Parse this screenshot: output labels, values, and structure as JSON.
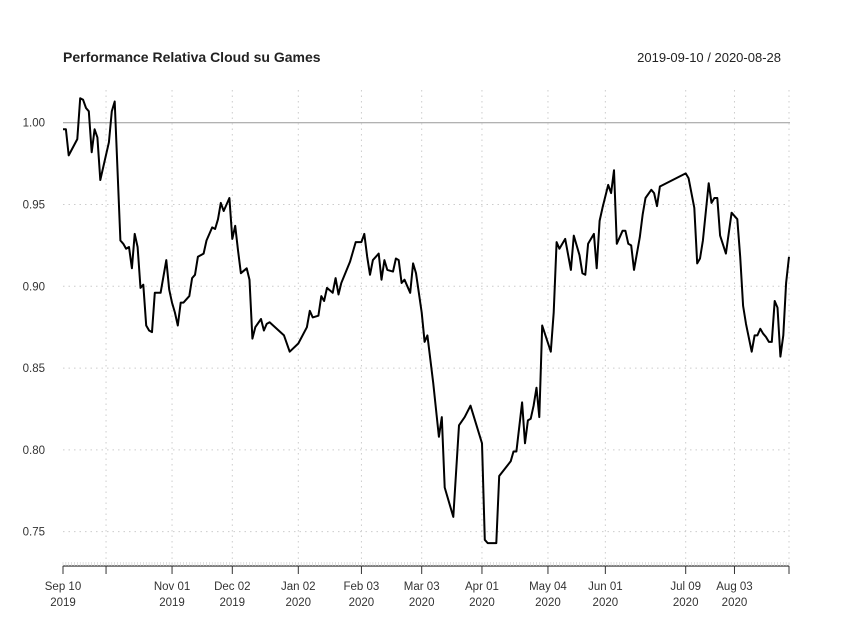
{
  "chart_data": {
    "type": "line",
    "title": "Performance Relativa Cloud su Games",
    "date_range": "2019-09-10 / 2020-08-28",
    "xlabel": "",
    "ylabel": "",
    "ylim": [
      0.729,
      1.02
    ],
    "grid": true,
    "reference_line": 1.0,
    "colors": {
      "series": "#000000",
      "reference": "#999999",
      "grid": "#cccccc"
    },
    "y_ticks": [
      {
        "value": 0.75,
        "label": "0.75"
      },
      {
        "value": 0.8,
        "label": "0.80"
      },
      {
        "value": 0.85,
        "label": "0.85"
      },
      {
        "value": 0.9,
        "label": "0.90"
      },
      {
        "value": 0.95,
        "label": "0.95"
      },
      {
        "value": 1.0,
        "label": "1.00"
      }
    ],
    "x_ticks": [
      {
        "date": "2019-09-10",
        "label1": "Sep 10",
        "label2": "2019"
      },
      {
        "date": "2019-10-01",
        "label1": "",
        "label2": ""
      },
      {
        "date": "2019-11-01",
        "label1": "Nov 01",
        "label2": "2019"
      },
      {
        "date": "2019-12-02",
        "label1": "Dec 02",
        "label2": "2019"
      },
      {
        "date": "2020-01-02",
        "label1": "Jan 02",
        "label2": "2020"
      },
      {
        "date": "2020-02-03",
        "label1": "Feb 03",
        "label2": "2020"
      },
      {
        "date": "2020-03-03",
        "label1": "Mar 03",
        "label2": "2020"
      },
      {
        "date": "2020-04-01",
        "label1": "Apr 01",
        "label2": "2020"
      },
      {
        "date": "2020-05-04",
        "label1": "May 04",
        "label2": "2020"
      },
      {
        "date": "2020-06-01",
        "label1": "Jun 01",
        "label2": "2020"
      },
      {
        "date": "2020-07-09",
        "label1": "Jul 09",
        "label2": "2020"
      },
      {
        "date": "2020-08-03",
        "label1": "Aug 03",
        "label2": "2020"
      },
      {
        "date": "2020-08-28",
        "label1": "",
        "label2": ""
      }
    ],
    "series": [
      {
        "points": [
          [
            "2019-09-10",
            0.996
          ],
          [
            "2019-09-11",
            0.996
          ],
          [
            "2019-09-12",
            0.98
          ],
          [
            "2019-09-17",
            0.99
          ],
          [
            "2019-09-18",
            1.015
          ],
          [
            "2019-09-19",
            1.014
          ],
          [
            "2019-09-20",
            1.009
          ],
          [
            "2019-09-23",
            1.007
          ],
          [
            "2019-09-24",
            0.982
          ],
          [
            "2019-09-25",
            0.996
          ],
          [
            "2019-09-26",
            0.991
          ],
          [
            "2019-09-27",
            0.965
          ],
          [
            "2019-10-02",
            0.988
          ],
          [
            "2019-10-03",
            1.007
          ],
          [
            "2019-10-04",
            1.013
          ],
          [
            "2019-10-08",
            0.928
          ],
          [
            "2019-10-09",
            0.926
          ],
          [
            "2019-10-10",
            0.923
          ],
          [
            "2019-10-11",
            0.924
          ],
          [
            "2019-10-14",
            0.911
          ],
          [
            "2019-10-15",
            0.932
          ],
          [
            "2019-10-16",
            0.924
          ],
          [
            "2019-10-17",
            0.899
          ],
          [
            "2019-10-18",
            0.901
          ],
          [
            "2019-10-21",
            0.876
          ],
          [
            "2019-10-22",
            0.873
          ],
          [
            "2019-10-23",
            0.872
          ],
          [
            "2019-10-24",
            0.896
          ],
          [
            "2019-10-28",
            0.896
          ],
          [
            "2019-10-30",
            0.916
          ],
          [
            "2019-10-31",
            0.898
          ],
          [
            "2019-11-01",
            0.89
          ],
          [
            "2019-11-04",
            0.884
          ],
          [
            "2019-11-05",
            0.876
          ],
          [
            "2019-11-06",
            0.89
          ],
          [
            "2019-11-07",
            0.89
          ],
          [
            "2019-11-11",
            0.894
          ],
          [
            "2019-11-12",
            0.905
          ],
          [
            "2019-11-13",
            0.907
          ],
          [
            "2019-11-14",
            0.918
          ],
          [
            "2019-11-18",
            0.92
          ],
          [
            "2019-11-19",
            0.928
          ],
          [
            "2019-11-21",
            0.936
          ],
          [
            "2019-11-22",
            0.935
          ],
          [
            "2019-11-25",
            0.941
          ],
          [
            "2019-11-26",
            0.951
          ],
          [
            "2019-11-27",
            0.946
          ],
          [
            "2019-11-29",
            0.954
          ],
          [
            "2019-12-02",
            0.929
          ],
          [
            "2019-12-03",
            0.937
          ],
          [
            "2019-12-04",
            0.922
          ],
          [
            "2019-12-05",
            0.908
          ],
          [
            "2019-12-09",
            0.911
          ],
          [
            "2019-12-10",
            0.904
          ],
          [
            "2019-12-11",
            0.868
          ],
          [
            "2019-12-12",
            0.875
          ],
          [
            "2019-12-16",
            0.88
          ],
          [
            "2019-12-17",
            0.873
          ],
          [
            "2019-12-18",
            0.877
          ],
          [
            "2019-12-19",
            0.878
          ],
          [
            "2019-12-26",
            0.87
          ],
          [
            "2019-12-30",
            0.86
          ],
          [
            "2020-01-02",
            0.865
          ],
          [
            "2020-01-07",
            0.875
          ],
          [
            "2020-01-08",
            0.885
          ],
          [
            "2020-01-09",
            0.881
          ],
          [
            "2020-01-13",
            0.882
          ],
          [
            "2020-01-14",
            0.894
          ],
          [
            "2020-01-15",
            0.891
          ],
          [
            "2020-01-16",
            0.899
          ],
          [
            "2020-01-20",
            0.896
          ],
          [
            "2020-01-21",
            0.905
          ],
          [
            "2020-01-22",
            0.895
          ],
          [
            "2020-01-23",
            0.902
          ],
          [
            "2020-01-28",
            0.915
          ],
          [
            "2020-01-30",
            0.927
          ],
          [
            "2020-02-03",
            0.927
          ],
          [
            "2020-02-04",
            0.932
          ],
          [
            "2020-02-05",
            0.918
          ],
          [
            "2020-02-06",
            0.907
          ],
          [
            "2020-02-07",
            0.916
          ],
          [
            "2020-02-11",
            0.92
          ],
          [
            "2020-02-12",
            0.904
          ],
          [
            "2020-02-13",
            0.916
          ],
          [
            "2020-02-14",
            0.91
          ],
          [
            "2020-02-18",
            0.909
          ],
          [
            "2020-02-19",
            0.917
          ],
          [
            "2020-02-20",
            0.916
          ],
          [
            "2020-02-21",
            0.902
          ],
          [
            "2020-02-24",
            0.904
          ],
          [
            "2020-02-26",
            0.896
          ],
          [
            "2020-02-27",
            0.914
          ],
          [
            "2020-02-28",
            0.908
          ],
          [
            "2020-03-03",
            0.884
          ],
          [
            "2020-03-04",
            0.866
          ],
          [
            "2020-03-05",
            0.87
          ],
          [
            "2020-03-09",
            0.841
          ],
          [
            "2020-03-11",
            0.808
          ],
          [
            "2020-03-12",
            0.82
          ],
          [
            "2020-03-13",
            0.777
          ],
          [
            "2020-03-18",
            0.759
          ],
          [
            "2020-03-20",
            0.815
          ],
          [
            "2020-03-24",
            0.82
          ],
          [
            "2020-03-26",
            0.827
          ],
          [
            "2020-04-01",
            0.804
          ],
          [
            "2020-04-02",
            0.745
          ],
          [
            "2020-04-03",
            0.743
          ],
          [
            "2020-04-08",
            0.743
          ],
          [
            "2020-04-09",
            0.784
          ],
          [
            "2020-04-15",
            0.793
          ],
          [
            "2020-04-16",
            0.799
          ],
          [
            "2020-04-17",
            0.799
          ],
          [
            "2020-04-21",
            0.829
          ],
          [
            "2020-04-22",
            0.804
          ],
          [
            "2020-04-23",
            0.818
          ],
          [
            "2020-04-24",
            0.819
          ],
          [
            "2020-04-27",
            0.827
          ],
          [
            "2020-04-28",
            0.838
          ],
          [
            "2020-04-29",
            0.82
          ],
          [
            "2020-04-30",
            0.876
          ],
          [
            "2020-05-05",
            0.86
          ],
          [
            "2020-05-06",
            0.884
          ],
          [
            "2020-05-07",
            0.927
          ],
          [
            "2020-05-08",
            0.923
          ],
          [
            "2020-05-12",
            0.929
          ],
          [
            "2020-05-14",
            0.91
          ],
          [
            "2020-05-15",
            0.931
          ],
          [
            "2020-05-19",
            0.919
          ],
          [
            "2020-05-20",
            0.908
          ],
          [
            "2020-05-21",
            0.907
          ],
          [
            "2020-05-22",
            0.926
          ],
          [
            "2020-05-26",
            0.932
          ],
          [
            "2020-05-27",
            0.911
          ],
          [
            "2020-05-28",
            0.94
          ],
          [
            "2020-05-29",
            0.948
          ],
          [
            "2020-06-02",
            0.962
          ],
          [
            "2020-06-03",
            0.957
          ],
          [
            "2020-06-04",
            0.971
          ],
          [
            "2020-06-05",
            0.926
          ],
          [
            "2020-06-09",
            0.934
          ],
          [
            "2020-06-10",
            0.934
          ],
          [
            "2020-06-11",
            0.926
          ],
          [
            "2020-06-12",
            0.925
          ],
          [
            "2020-06-15",
            0.91
          ],
          [
            "2020-06-17",
            0.93
          ],
          [
            "2020-06-18",
            0.944
          ],
          [
            "2020-06-19",
            0.954
          ],
          [
            "2020-06-23",
            0.959
          ],
          [
            "2020-06-24",
            0.957
          ],
          [
            "2020-06-25",
            0.949
          ],
          [
            "2020-06-26",
            0.961
          ],
          [
            "2020-07-09",
            0.969
          ],
          [
            "2020-07-10",
            0.966
          ],
          [
            "2020-07-14",
            0.948
          ],
          [
            "2020-07-15",
            0.914
          ],
          [
            "2020-07-16",
            0.917
          ],
          [
            "2020-07-17",
            0.928
          ],
          [
            "2020-07-21",
            0.963
          ],
          [
            "2020-07-22",
            0.951
          ],
          [
            "2020-07-23",
            0.954
          ],
          [
            "2020-07-24",
            0.954
          ],
          [
            "2020-07-27",
            0.931
          ],
          [
            "2020-07-29",
            0.92
          ],
          [
            "2020-07-31",
            0.945
          ],
          [
            "2020-08-04",
            0.941
          ],
          [
            "2020-08-05",
            0.918
          ],
          [
            "2020-08-06",
            0.888
          ],
          [
            "2020-08-07",
            0.877
          ],
          [
            "2020-08-11",
            0.86
          ],
          [
            "2020-08-12",
            0.87
          ],
          [
            "2020-08-13",
            0.87
          ],
          [
            "2020-08-14",
            0.874
          ],
          [
            "2020-08-17",
            0.871
          ],
          [
            "2020-08-18",
            0.869
          ],
          [
            "2020-08-19",
            0.866
          ],
          [
            "2020-08-20",
            0.866
          ],
          [
            "2020-08-21",
            0.891
          ],
          [
            "2020-08-24",
            0.887
          ],
          [
            "2020-08-25",
            0.857
          ],
          [
            "2020-08-26",
            0.87
          ],
          [
            "2020-08-27",
            0.902
          ],
          [
            "2020-08-28",
            0.918
          ]
        ]
      }
    ]
  }
}
